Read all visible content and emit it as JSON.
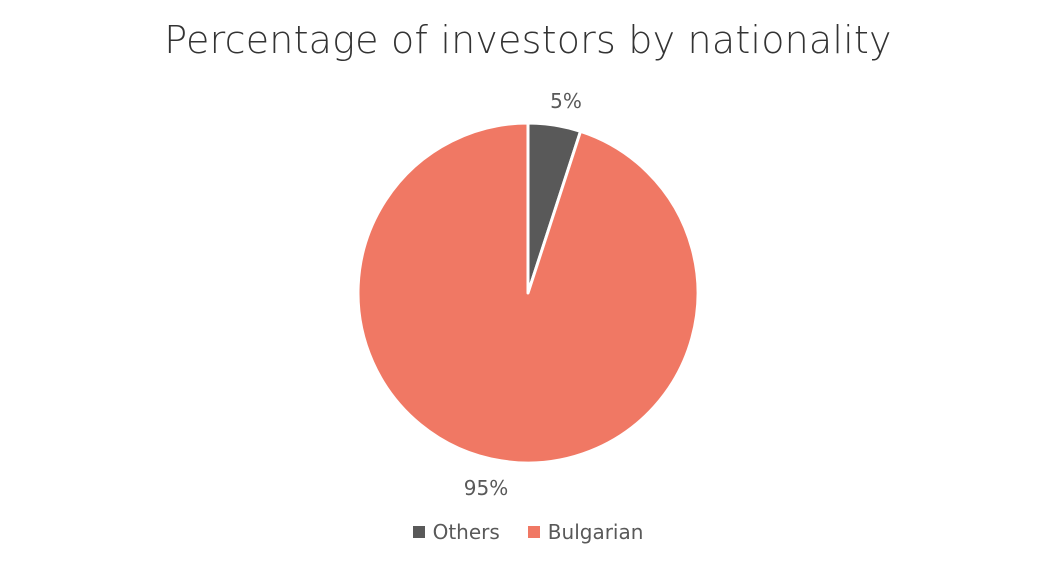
{
  "chart_data": {
    "type": "pie",
    "title": "Percentage of investors by nationality",
    "slices": [
      {
        "name": "Others",
        "value": 5,
        "label": "5%",
        "color": "#595959"
      },
      {
        "name": "Bulgarian",
        "value": 95,
        "label": "95%",
        "color": "#F07864"
      }
    ],
    "start_angle_deg": 0,
    "legend_position": "bottom"
  },
  "legend": {
    "items": [
      {
        "label": "Others",
        "color": "#595959"
      },
      {
        "label": "Bulgarian",
        "color": "#F07864"
      }
    ]
  }
}
